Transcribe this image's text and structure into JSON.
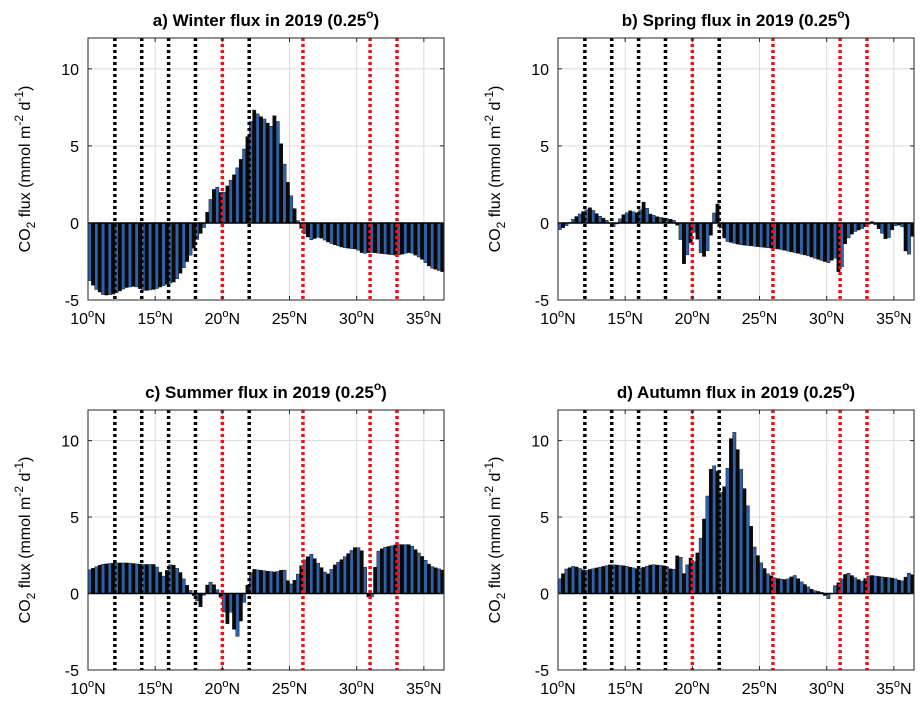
{
  "chart_data": [
    {
      "type": "bar",
      "panel": "a",
      "title_main": "a) Winter flux in 2019 (0.25",
      "title_sup": "o",
      "title_end": ")",
      "ylabel_parts": [
        "CO",
        "2",
        " flux (mmol m",
        "-2",
        " d",
        "-1",
        ")"
      ],
      "ylim": [
        -5,
        12
      ],
      "yticks": [
        -5,
        0,
        5,
        10
      ],
      "xlim": [
        10,
        36.5
      ],
      "xticks": [
        10,
        15,
        20,
        25,
        30,
        35
      ],
      "xtick_suffix_sup": "o",
      "xtick_suffix": "N",
      "grid": true,
      "black_lines": [
        12,
        14,
        16,
        18,
        22
      ],
      "red_lines": [
        20,
        26,
        31,
        33
      ],
      "profile": [
        [
          10.0,
          -3.6
        ],
        [
          10.6,
          -4.3
        ],
        [
          11.2,
          -4.7
        ],
        [
          12.0,
          -4.6
        ],
        [
          12.8,
          -4.2
        ],
        [
          13.5,
          -4.1
        ],
        [
          14.2,
          -4.4
        ],
        [
          15.0,
          -4.3
        ],
        [
          15.8,
          -4.0
        ],
        [
          16.5,
          -3.8
        ],
        [
          17.2,
          -2.8
        ],
        [
          17.8,
          -1.8
        ],
        [
          18.2,
          -0.9
        ],
        [
          18.6,
          -0.4
        ],
        [
          19.0,
          1.2
        ],
        [
          19.5,
          2.5
        ],
        [
          20.0,
          1.8
        ],
        [
          20.5,
          2.6
        ],
        [
          21.0,
          3.3
        ],
        [
          21.5,
          4.4
        ],
        [
          22.0,
          6.0
        ],
        [
          22.3,
          7.4
        ],
        [
          22.7,
          7.0
        ],
        [
          23.2,
          6.7
        ],
        [
          23.6,
          6.2
        ],
        [
          24.0,
          7.3
        ],
        [
          24.4,
          5.0
        ],
        [
          24.8,
          2.9
        ],
        [
          25.2,
          1.5
        ],
        [
          25.6,
          0.2
        ],
        [
          26.0,
          -0.6
        ],
        [
          26.6,
          -1.1
        ],
        [
          27.2,
          -0.9
        ],
        [
          28.0,
          -1.3
        ],
        [
          29.0,
          -1.6
        ],
        [
          30.0,
          -1.7
        ],
        [
          30.5,
          -2.0
        ],
        [
          31.0,
          -1.9
        ],
        [
          32.0,
          -2.0
        ],
        [
          33.0,
          -2.1
        ],
        [
          34.0,
          -1.9
        ],
        [
          34.8,
          -2.3
        ],
        [
          35.5,
          -2.9
        ],
        [
          36.5,
          -3.2
        ]
      ]
    },
    {
      "type": "bar",
      "panel": "b",
      "title_main": "b) Spring flux in 2019 (0.25",
      "title_sup": "o",
      "title_end": ")",
      "ylabel_parts": [
        "CO",
        "2",
        " flux (mmol m",
        "-2",
        " d",
        "-1",
        ")"
      ],
      "ylim": [
        -5,
        12
      ],
      "yticks": [
        -5,
        0,
        5,
        10
      ],
      "xlim": [
        10,
        36.5
      ],
      "xticks": [
        10,
        15,
        20,
        25,
        30,
        35
      ],
      "xtick_suffix_sup": "o",
      "xtick_suffix": "N",
      "grid": true,
      "black_lines": [
        12,
        14,
        16,
        18,
        22
      ],
      "red_lines": [
        20,
        26,
        31,
        33
      ],
      "profile": [
        [
          10.0,
          -0.5
        ],
        [
          10.6,
          -0.2
        ],
        [
          11.2,
          0.3
        ],
        [
          11.8,
          0.7
        ],
        [
          12.4,
          1.0
        ],
        [
          13.0,
          0.5
        ],
        [
          13.6,
          0.2
        ],
        [
          14.2,
          -0.3
        ],
        [
          14.8,
          0.5
        ],
        [
          15.4,
          0.8
        ],
        [
          16.0,
          0.6
        ],
        [
          16.4,
          1.4
        ],
        [
          16.8,
          0.6
        ],
        [
          17.4,
          0.4
        ],
        [
          18.0,
          0.3
        ],
        [
          18.6,
          0.2
        ],
        [
          19.0,
          -0.3
        ],
        [
          19.4,
          -2.8
        ],
        [
          19.8,
          -1.5
        ],
        [
          20.2,
          -0.4
        ],
        [
          20.6,
          -1.9
        ],
        [
          21.0,
          -2.3
        ],
        [
          21.4,
          -0.7
        ],
        [
          21.8,
          1.7
        ],
        [
          22.2,
          -0.8
        ],
        [
          22.6,
          -1.2
        ],
        [
          23.5,
          -1.4
        ],
        [
          24.5,
          -1.5
        ],
        [
          25.5,
          -1.6
        ],
        [
          26.5,
          -1.7
        ],
        [
          27.5,
          -1.9
        ],
        [
          28.5,
          -2.1
        ],
        [
          29.5,
          -2.4
        ],
        [
          30.2,
          -2.6
        ],
        [
          30.6,
          -2.2
        ],
        [
          31.0,
          -3.6
        ],
        [
          31.4,
          -1.2
        ],
        [
          32.0,
          -0.6
        ],
        [
          32.8,
          -0.3
        ],
        [
          33.4,
          0.1
        ],
        [
          34.0,
          -0.5
        ],
        [
          34.5,
          -1.2
        ],
        [
          35.0,
          -0.2
        ],
        [
          35.6,
          -0.1
        ],
        [
          36.0,
          -2.6
        ],
        [
          36.5,
          -0.3
        ]
      ]
    },
    {
      "type": "bar",
      "panel": "c",
      "title_main": "c) Summer flux in 2019 (0.25",
      "title_sup": "o",
      "title_end": ")",
      "ylabel_parts": [
        "CO",
        "2",
        " flux (mmol m",
        "-2",
        " d",
        "-1",
        ")"
      ],
      "ylim": [
        -5,
        12
      ],
      "yticks": [
        -5,
        0,
        5,
        10
      ],
      "xlim": [
        10,
        36.5
      ],
      "xticks": [
        10,
        15,
        20,
        25,
        30,
        35
      ],
      "xtick_suffix_sup": "o",
      "xtick_suffix": "N",
      "grid": true,
      "black_lines": [
        12,
        14,
        16,
        18,
        22
      ],
      "red_lines": [
        20,
        26,
        31,
        33
      ],
      "profile": [
        [
          10.0,
          1.5
        ],
        [
          11.0,
          1.9
        ],
        [
          12.0,
          2.0
        ],
        [
          13.0,
          2.0
        ],
        [
          14.0,
          1.9
        ],
        [
          15.0,
          1.9
        ],
        [
          15.6,
          1.1
        ],
        [
          16.2,
          2.0
        ],
        [
          16.8,
          1.5
        ],
        [
          17.4,
          0.5
        ],
        [
          18.0,
          -0.3
        ],
        [
          18.4,
          -0.9
        ],
        [
          18.8,
          0.5
        ],
        [
          19.2,
          0.8
        ],
        [
          19.6,
          0.3
        ],
        [
          20.0,
          -0.5
        ],
        [
          20.3,
          -2.2
        ],
        [
          20.7,
          -1.0
        ],
        [
          21.0,
          -3.3
        ],
        [
          21.4,
          -1.7
        ],
        [
          21.8,
          0.3
        ],
        [
          22.2,
          1.6
        ],
        [
          23.0,
          1.5
        ],
        [
          24.0,
          1.4
        ],
        [
          24.6,
          1.6
        ],
        [
          25.0,
          0.5
        ],
        [
          25.5,
          1.0
        ],
        [
          26.0,
          2.1
        ],
        [
          26.6,
          2.6
        ],
        [
          27.2,
          1.9
        ],
        [
          27.8,
          1.2
        ],
        [
          28.4,
          1.9
        ],
        [
          29.0,
          2.3
        ],
        [
          29.6,
          2.8
        ],
        [
          30.0,
          3.1
        ],
        [
          30.5,
          2.7
        ],
        [
          31.0,
          -1.2
        ],
        [
          31.5,
          2.7
        ],
        [
          32.0,
          3.0
        ],
        [
          33.0,
          3.2
        ],
        [
          34.0,
          3.2
        ],
        [
          34.8,
          2.5
        ],
        [
          35.5,
          1.8
        ],
        [
          36.5,
          1.5
        ]
      ]
    },
    {
      "type": "bar",
      "panel": "d",
      "title_main": "d) Autumn flux in 2019 (0.25",
      "title_sup": "o",
      "title_end": ")",
      "ylabel_parts": [
        "CO",
        "2",
        " flux (mmol m",
        "-2",
        " d",
        "-1",
        ")"
      ],
      "ylim": [
        -5,
        12
      ],
      "yticks": [
        -5,
        0,
        5,
        10
      ],
      "xlim": [
        10,
        36.5
      ],
      "xticks": [
        10,
        15,
        20,
        25,
        30,
        35
      ],
      "xtick_suffix_sup": "o",
      "xtick_suffix": "N",
      "grid": true,
      "black_lines": [
        12,
        14,
        16,
        18,
        22
      ],
      "red_lines": [
        20,
        26,
        31,
        33
      ],
      "profile": [
        [
          10.0,
          0.8
        ],
        [
          10.6,
          1.6
        ],
        [
          11.2,
          1.8
        ],
        [
          12.0,
          1.5
        ],
        [
          13.0,
          1.7
        ],
        [
          14.0,
          1.9
        ],
        [
          15.0,
          1.8
        ],
        [
          16.0,
          1.6
        ],
        [
          17.0,
          1.9
        ],
        [
          18.0,
          1.8
        ],
        [
          18.6,
          1.5
        ],
        [
          19.0,
          2.9
        ],
        [
          19.4,
          1.2
        ],
        [
          19.8,
          2.4
        ],
        [
          20.2,
          2.0
        ],
        [
          20.6,
          3.5
        ],
        [
          21.0,
          5.5
        ],
        [
          21.4,
          8.3
        ],
        [
          21.8,
          8.4
        ],
        [
          22.2,
          6.2
        ],
        [
          22.6,
          8.0
        ],
        [
          23.0,
          11.1
        ],
        [
          23.4,
          9.3
        ],
        [
          23.8,
          7.2
        ],
        [
          24.2,
          5.4
        ],
        [
          24.6,
          3.1
        ],
        [
          25.0,
          2.2
        ],
        [
          25.6,
          1.3
        ],
        [
          26.2,
          1.0
        ],
        [
          27.0,
          0.9
        ],
        [
          27.6,
          1.2
        ],
        [
          28.2,
          0.7
        ],
        [
          29.0,
          0.2
        ],
        [
          29.6,
          0.1
        ],
        [
          30.2,
          -0.4
        ],
        [
          30.6,
          0.5
        ],
        [
          31.0,
          0.8
        ],
        [
          31.5,
          1.4
        ],
        [
          32.0,
          1.1
        ],
        [
          32.6,
          0.8
        ],
        [
          33.2,
          1.2
        ],
        [
          34.0,
          1.1
        ],
        [
          35.0,
          1.0
        ],
        [
          35.6,
          0.8
        ],
        [
          36.2,
          1.4
        ],
        [
          36.5,
          1.1
        ]
      ]
    }
  ]
}
